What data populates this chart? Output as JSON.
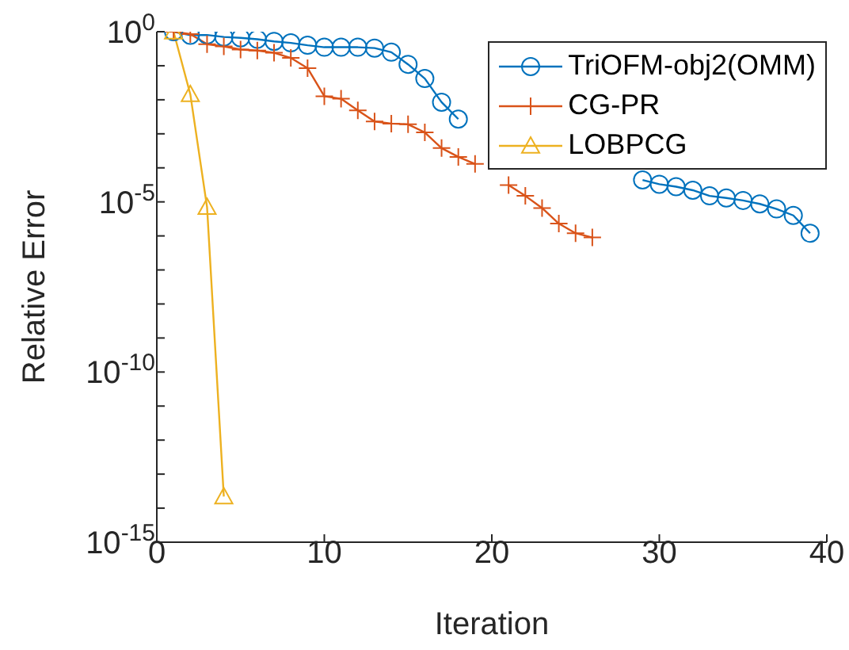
{
  "chart_data": {
    "type": "line",
    "xlabel": "Iteration",
    "ylabel": "Relative Error",
    "log": "y",
    "xlim": [
      0,
      40
    ],
    "xticks": [
      0,
      10,
      20,
      30,
      40
    ],
    "ylim": [
      1e-15,
      1
    ],
    "yticks": [
      {
        "value": 1e-15,
        "label": "10$^{-15}$"
      },
      {
        "value": 1e-14,
        "label": null
      },
      {
        "value": 1e-13,
        "label": null
      },
      {
        "value": 1e-12,
        "label": null
      },
      {
        "value": 1e-11,
        "label": null
      },
      {
        "value": 1e-10,
        "label": "10$^{-10}$"
      },
      {
        "value": 1e-09,
        "label": null
      },
      {
        "value": 1e-08,
        "label": null
      },
      {
        "value": 1e-07,
        "label": null
      },
      {
        "value": 1e-06,
        "label": null
      },
      {
        "value": 1e-05,
        "label": "10$^{-5}$"
      },
      {
        "value": 0.0001,
        "label": null
      },
      {
        "value": 0.001,
        "label": null
      },
      {
        "value": 0.01,
        "label": null
      },
      {
        "value": 0.1,
        "label": null
      },
      {
        "value": 1,
        "label": "10$^{0}$"
      }
    ],
    "grid": false,
    "legend": "top right",
    "series": [
      {
        "name": "TriOFM-obj2(OMM)",
        "color": "#0072bd",
        "marker": "circle",
        "x": [
          1,
          2,
          3,
          4,
          5,
          6,
          7,
          8,
          9,
          10,
          11,
          12,
          13,
          14,
          15,
          16,
          17,
          18,
          19,
          20,
          21,
          22,
          23,
          24,
          25,
          26,
          27,
          28,
          29,
          30,
          31,
          32,
          33,
          34,
          35,
          36,
          37,
          38,
          39
        ],
        "values": [
          1,
          0.79,
          0.8,
          0.7,
          0.66,
          0.6,
          0.52,
          0.47,
          0.4,
          0.35,
          0.35,
          0.35,
          0.33,
          0.25,
          0.11,
          0.042,
          0.0085,
          0.0027,
          null,
          null,
          null,
          null,
          null,
          null,
          null,
          null,
          null,
          null,
          4.4e-05,
          3.3e-05,
          2.8e-05,
          2.2e-05,
          1.5e-05,
          1.3e-05,
          1.1e-05,
          8.7e-06,
          6.2e-06,
          4e-06,
          1.2e-06
        ]
      },
      {
        "name": "CG-PR",
        "color": "#d95319",
        "marker": "cross",
        "x": [
          1,
          2,
          3,
          4,
          5,
          6,
          7,
          8,
          9,
          10,
          11,
          12,
          13,
          14,
          15,
          16,
          17,
          18,
          19,
          20,
          21,
          22,
          23,
          24,
          25,
          26
        ],
        "values": [
          1,
          0.85,
          0.43,
          0.37,
          0.3,
          0.28,
          0.24,
          0.17,
          0.085,
          0.0127,
          0.0107,
          0.0049,
          0.0023,
          0.002,
          0.0019,
          0.0011,
          0.00038,
          0.00021,
          0.00013,
          null,
          3.1e-05,
          1.5e-05,
          6.6e-06,
          2.3e-06,
          1.2e-06,
          9e-07
        ]
      },
      {
        "name": "LOBPCG",
        "color": "#edb120",
        "marker": "triangle",
        "x": [
          1,
          2,
          3,
          4
        ],
        "values": [
          1,
          0.0145,
          7e-06,
          2.2e-14
        ]
      }
    ]
  }
}
